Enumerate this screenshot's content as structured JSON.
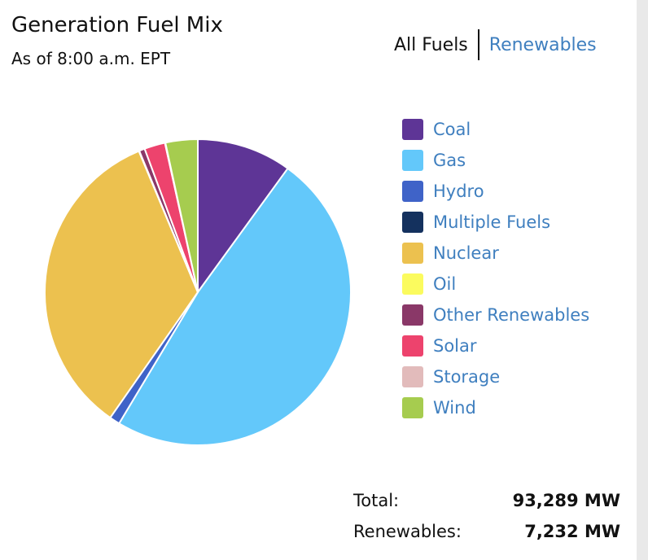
{
  "header": {
    "title": "Generation Fuel Mix",
    "subtitle": "As of 8:00 a.m. EPT"
  },
  "toggle": {
    "all_fuels": "All Fuels",
    "renewables": "Renewables"
  },
  "chart_data": {
    "type": "pie",
    "title": "Generation Fuel Mix",
    "legend_position": "right",
    "categories": [
      "Coal",
      "Gas",
      "Hydro",
      "Multiple Fuels",
      "Nuclear",
      "Oil",
      "Other Renewables",
      "Solar",
      "Storage",
      "Wind"
    ],
    "values": [
      10.0,
      48.6,
      1.1,
      0.0,
      34.0,
      0.05,
      0.6,
      2.2,
      0.05,
      3.4
    ],
    "value_unit": "percent of total (estimated)",
    "colors": [
      "#5e3596",
      "#63c8fa",
      "#3f63c8",
      "#14315e",
      "#ecc14f",
      "#fbfb5e",
      "#8a3868",
      "#ed436d",
      "#e2bbbb",
      "#a6cc4f"
    ]
  },
  "totals": {
    "total_label": "Total:",
    "total_value": "93,289 MW",
    "renewables_label": "Renewables:",
    "renewables_value": "7,232 MW"
  }
}
